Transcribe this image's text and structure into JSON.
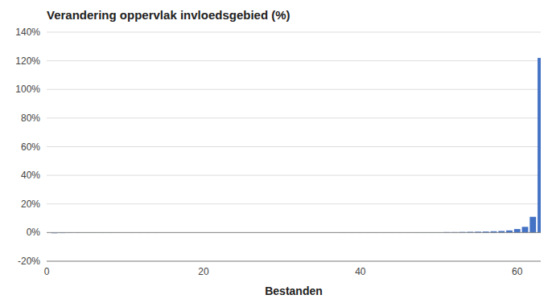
{
  "chart_data": {
    "type": "bar",
    "title": "Verandering oppervlak invloedsgebied (%)",
    "xlabel": "Bestanden",
    "x": [
      1,
      2,
      3,
      4,
      5,
      6,
      7,
      8,
      9,
      10,
      11,
      12,
      13,
      14,
      15,
      16,
      17,
      18,
      19,
      20,
      21,
      22,
      23,
      24,
      25,
      26,
      27,
      28,
      29,
      30,
      31,
      32,
      33,
      34,
      35,
      36,
      37,
      38,
      39,
      40,
      41,
      42,
      43,
      44,
      45,
      46,
      47,
      48,
      49,
      50,
      51,
      52,
      53,
      54,
      55,
      56,
      57,
      58,
      59,
      60,
      61,
      62,
      63
    ],
    "values": [
      -0.005,
      -0.004,
      -0.003,
      -0.003,
      -0.002,
      -0.002,
      -0.002,
      -0.002,
      -0.001,
      -0.001,
      -0.001,
      -0.001,
      -0.001,
      -0.001,
      0.0,
      0.0,
      0.0,
      0.0,
      0.0,
      0.0,
      0.0,
      0.0,
      0.0,
      0.0,
      0.0,
      0.0,
      0.0,
      0.0,
      0.0,
      0.0,
      0.0,
      0.0,
      0.0,
      0.0,
      0.0,
      0.0,
      0.0,
      0.001,
      0.001,
      0.001,
      0.001,
      0.001,
      0.001,
      0.001,
      0.001,
      0.001,
      0.002,
      0.002,
      0.002,
      0.002,
      0.003,
      0.003,
      0.004,
      0.005,
      0.006,
      0.007,
      0.009,
      0.011,
      0.015,
      0.025,
      0.04,
      0.11,
      1.22
    ],
    "color": "#4472C4",
    "xlim": [
      0,
      63
    ],
    "xticks": [
      0,
      20,
      40,
      60
    ],
    "ylim": [
      -0.2,
      1.4
    ],
    "yticks": [
      {
        "value": -0.2,
        "label": "-20%"
      },
      {
        "value": 0.0,
        "label": "0%"
      },
      {
        "value": 0.2,
        "label": "20%"
      },
      {
        "value": 0.4,
        "label": "40%"
      },
      {
        "value": 0.6,
        "label": "60%"
      },
      {
        "value": 0.8,
        "label": "80%"
      },
      {
        "value": 1.0,
        "label": "100%"
      },
      {
        "value": 1.2,
        "label": "120%"
      },
      {
        "value": 1.4,
        "label": "140%"
      }
    ],
    "grid": true
  }
}
